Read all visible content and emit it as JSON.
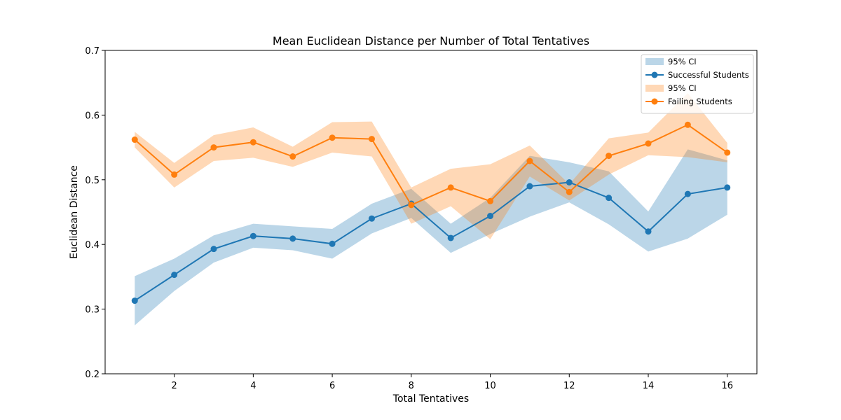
{
  "chart_data": {
    "type": "line",
    "title": "Mean Euclidean Distance per Number of Total Tentatives",
    "xlabel": "Total Tentatives",
    "ylabel": "Euclidean Distance",
    "xlim": [
      0.25,
      16.75
    ],
    "ylim": [
      0.2,
      0.7
    ],
    "xticks": [
      2,
      4,
      6,
      8,
      10,
      12,
      14,
      16
    ],
    "yticks": [
      0.2,
      0.3,
      0.4,
      0.5,
      0.6,
      0.7
    ],
    "grid": false,
    "legend_position": "top-right",
    "x": [
      1,
      2,
      3,
      4,
      5,
      6,
      7,
      8,
      9,
      10,
      11,
      12,
      13,
      14,
      15,
      16
    ],
    "series": [
      {
        "name": "Successful Students",
        "ci_label": "95% CI",
        "color": "#1f77b4",
        "values": [
          0.313,
          0.353,
          0.393,
          0.413,
          0.409,
          0.401,
          0.44,
          0.463,
          0.41,
          0.444,
          0.49,
          0.496,
          0.472,
          0.42,
          0.478,
          0.488
        ],
        "ci_lower": [
          0.275,
          0.328,
          0.372,
          0.395,
          0.391,
          0.378,
          0.417,
          0.441,
          0.387,
          0.416,
          0.443,
          0.465,
          0.431,
          0.389,
          0.409,
          0.446
        ],
        "ci_upper": [
          0.351,
          0.378,
          0.414,
          0.432,
          0.428,
          0.424,
          0.463,
          0.486,
          0.432,
          0.472,
          0.537,
          0.527,
          0.513,
          0.451,
          0.547,
          0.53
        ]
      },
      {
        "name": "Failing Students",
        "ci_label": "95% CI",
        "color": "#ff7f0e",
        "values": [
          0.562,
          0.508,
          0.55,
          0.558,
          0.536,
          0.565,
          0.563,
          0.461,
          0.488,
          0.467,
          0.529,
          0.481,
          0.537,
          0.556,
          0.585,
          0.542
        ],
        "ci_lower": [
          0.55,
          0.488,
          0.529,
          0.534,
          0.52,
          0.542,
          0.536,
          0.432,
          0.459,
          0.408,
          0.505,
          0.468,
          0.508,
          0.538,
          0.535,
          0.527
        ],
        "ci_upper": [
          0.574,
          0.526,
          0.569,
          0.581,
          0.551,
          0.589,
          0.59,
          0.488,
          0.517,
          0.524,
          0.553,
          0.493,
          0.564,
          0.573,
          0.634,
          0.557
        ]
      }
    ]
  }
}
